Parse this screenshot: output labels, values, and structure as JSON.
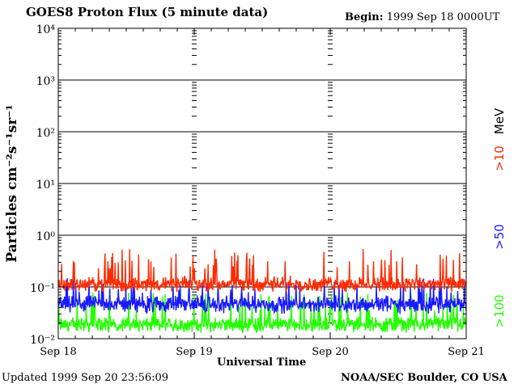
{
  "header": {
    "title": "GOES8 Proton Flux (5 minute data)",
    "begin_label": "Begin:",
    "begin_value": "1999 Sep 18 0000UT"
  },
  "footer": {
    "updated": "Updated 1999 Sep 20 23:56:09",
    "credit": "NOAA/SEC Boulder, CO USA"
  },
  "colors": {
    "gt10": "#ff2a00",
    "gt50": "#1a1aff",
    "gt100": "#22ff00",
    "grid": "#000000"
  },
  "chart_data": {
    "type": "line",
    "title": "GOES8 Proton Flux (5 minute data)",
    "xlabel": "Universal Time",
    "ylabel": "Particles cm⁻²s⁻¹sr⁻¹",
    "yscale": "log",
    "ylim": [
      0.01,
      10000
    ],
    "y_ticks": [
      "10⁻²",
      "10⁻¹",
      "10⁰",
      "10¹",
      "10²",
      "10³",
      "10⁴"
    ],
    "x_ticks": [
      "Sep 18",
      "Sep 19",
      "Sep 20",
      "Sep 21"
    ],
    "xlim": [
      "1999-09-18 00:00",
      "1999-09-21 00:00"
    ],
    "right_label_unit": "MeV",
    "series": [
      {
        "name": ">10",
        "color": "#ff2a00",
        "typical": 0.12,
        "min": 0.08,
        "max": 0.55
      },
      {
        "name": ">50",
        "color": "#1a1aff",
        "typical": 0.05,
        "min": 0.03,
        "max": 0.15
      },
      {
        "name": ">100",
        "color": "#22ff00",
        "typical": 0.02,
        "min": 0.013,
        "max": 0.08
      }
    ],
    "grid": true
  }
}
